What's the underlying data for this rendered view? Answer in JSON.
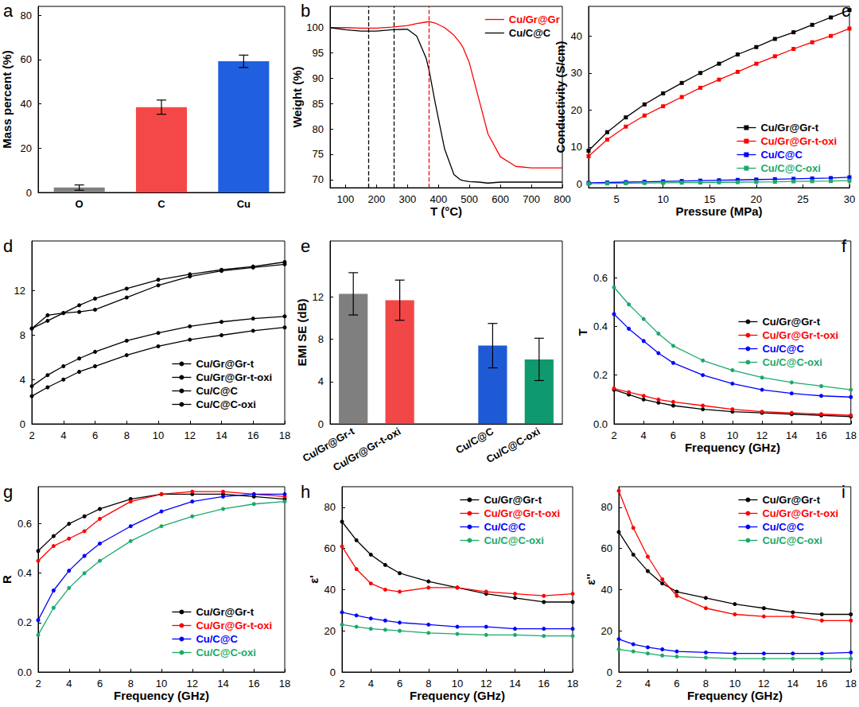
{
  "chart_data": [
    {
      "type": "bar",
      "title": "a",
      "ylabel": "Mass percent (%)",
      "categories": [
        "O",
        "C",
        "Cu"
      ],
      "values": [
        2.2,
        38.5,
        59.2
      ],
      "errors": [
        1.2,
        3.2,
        2.8
      ],
      "colors": [
        "#808080",
        "#f44848",
        "#1f5fe0"
      ],
      "ylim": [
        0,
        84
      ],
      "yticks": [
        0,
        20,
        40,
        60,
        80
      ],
      "grid": false
    },
    {
      "type": "line",
      "title": "b",
      "xlabel": "T (°C)",
      "ylabel": "Weight (%)",
      "x": [
        50,
        100,
        150,
        200,
        250,
        300,
        330,
        360,
        370,
        390,
        420,
        450,
        470,
        480,
        500,
        530,
        560,
        600,
        650,
        700,
        750,
        800
      ],
      "series": [
        {
          "name": "Cu/Gr@Gr",
          "color": "#ff0000",
          "values": [
            100,
            100,
            99.9,
            99.9,
            100.1,
            100.4,
            100.8,
            101.1,
            101.2,
            100.9,
            100,
            98.5,
            97,
            96,
            93,
            86,
            79,
            74.5,
            72.6,
            72.3,
            72.3,
            72.3
          ]
        },
        {
          "name": "Cu/C@C",
          "color": "#000000",
          "values": [
            100,
            99.6,
            99.3,
            99.3,
            99.6,
            99.7,
            98.3,
            94,
            91.5,
            85,
            76,
            71,
            70,
            69.8,
            69.6,
            69.5,
            69.3,
            69.5,
            69.5,
            69.5,
            69.5,
            69.5
          ]
        }
      ],
      "vlines": [
        {
          "x": 175,
          "color": "#000000"
        },
        {
          "x": 255,
          "color": "#000000"
        },
        {
          "x": 370,
          "color": "#ff0000"
        }
      ],
      "xlim": [
        50,
        800
      ],
      "xticks": [
        100,
        200,
        300,
        400,
        500,
        600,
        700,
        800
      ],
      "ylim": [
        68.4,
        104.2
      ],
      "yticks": [
        70,
        75,
        80,
        85,
        90,
        95,
        100
      ],
      "legend": "upper right",
      "grid": false
    },
    {
      "type": "line",
      "title": "c",
      "xlabel": "Pressure (MPa)",
      "ylabel": "Conductivity (S/cm)",
      "x": [
        2,
        4,
        6,
        8,
        10,
        12,
        14,
        16,
        18,
        20,
        22,
        24,
        26,
        28,
        30
      ],
      "series": [
        {
          "name": "Cu/Gr@Gr-t",
          "color": "#000000",
          "values": [
            9,
            14,
            18,
            21.5,
            24.5,
            27.3,
            30,
            32.5,
            35,
            37,
            39.2,
            41,
            43,
            45,
            47
          ]
        },
        {
          "name": "Cu/Gr@Gr-t-oxi",
          "color": "#ff0000",
          "values": [
            7.5,
            12,
            15.5,
            18.5,
            21,
            23.5,
            26,
            28.2,
            30.3,
            32.5,
            34.5,
            36.5,
            38.3,
            40,
            42
          ]
        },
        {
          "name": "Cu/C@C",
          "color": "#0000ff",
          "values": [
            0.3,
            0.4,
            0.5,
            0.6,
            0.7,
            0.8,
            0.9,
            1.0,
            1.1,
            1.2,
            1.3,
            1.4,
            1.5,
            1.6,
            1.8
          ]
        },
        {
          "name": "Cu/C@C-oxi",
          "color": "#1aaa6a",
          "values": [
            0.1,
            0.15,
            0.2,
            0.25,
            0.3,
            0.35,
            0.4,
            0.45,
            0.5,
            0.55,
            0.6,
            0.7,
            0.75,
            0.8,
            0.9
          ]
        }
      ],
      "marker": "square",
      "xlim": [
        2,
        30
      ],
      "xticks": [
        5,
        10,
        15,
        20,
        25,
        30
      ],
      "ylim": [
        -1,
        48
      ],
      "yticks": [
        0,
        10,
        20,
        30,
        40
      ],
      "legend": "lower right",
      "grid": false
    },
    {
      "type": "line",
      "title": "d",
      "x": [
        2,
        3,
        4,
        5,
        6,
        8,
        10,
        12,
        14,
        16,
        18
      ],
      "series": [
        {
          "name": "Cu/Gr@Gr-t",
          "color": "#000000",
          "values": [
            8.6,
            9.3,
            10.0,
            10.7,
            11.3,
            12.2,
            13.0,
            13.5,
            13.9,
            14.2,
            14.6
          ]
        },
        {
          "name": "Cu/Gr@Gr-t-oxi",
          "color": "#000000",
          "values": [
            8.6,
            9.8,
            10.0,
            10.1,
            10.3,
            11.4,
            12.5,
            13.3,
            13.8,
            14.1,
            14.4
          ]
        },
        {
          "name": "Cu/C@C",
          "color": "#000000",
          "values": [
            3.4,
            4.4,
            5.2,
            5.9,
            6.5,
            7.5,
            8.2,
            8.8,
            9.2,
            9.5,
            9.7
          ]
        },
        {
          "name": "Cu/C@C-oxi",
          "color": "#000000",
          "values": [
            2.5,
            3.3,
            4.0,
            4.7,
            5.2,
            6.2,
            7.0,
            7.6,
            8.0,
            8.4,
            8.7
          ]
        }
      ],
      "marker": "circle",
      "xlim": [
        2,
        18
      ],
      "xticks": [
        2,
        4,
        6,
        8,
        10,
        12,
        14,
        16,
        18
      ],
      "ylim": [
        0,
        16.5
      ],
      "yticks": [
        0,
        4,
        8,
        12
      ],
      "legend": "lower right",
      "grid": false
    },
    {
      "type": "bar",
      "title": "e",
      "ylabel": "EMI SE (dB)",
      "categories": [
        "Cu/Gr@Gr-t",
        "Cu/Gr@Gr-t-oxi",
        null,
        "Cu/C@C",
        "Cu/C@C-oxi"
      ],
      "values": [
        12.3,
        11.7,
        null,
        7.4,
        6.1
      ],
      "errors": [
        2.0,
        1.9,
        null,
        2.1,
        2.0
      ],
      "colors": [
        "#7f7f7f",
        "#f24747",
        null,
        "#1f5ad6",
        "#0e9a6e"
      ],
      "ylim": [
        0,
        17.3
      ],
      "yticks": [
        0,
        4,
        8,
        12
      ],
      "grid": false
    },
    {
      "type": "line",
      "title": "f",
      "xlabel": "Frequency (GHz)",
      "ylabel": "T",
      "x": [
        2,
        3,
        4,
        5,
        6,
        8,
        10,
        12,
        14,
        16,
        18
      ],
      "series": [
        {
          "name": "Cu/Gr@Gr-t",
          "color": "#000000",
          "values": [
            0.14,
            0.12,
            0.1,
            0.087,
            0.075,
            0.06,
            0.05,
            0.045,
            0.04,
            0.035,
            0.03
          ]
        },
        {
          "name": "Cu/Gr@Gr-t-oxi",
          "color": "#ff0000",
          "values": [
            0.145,
            0.13,
            0.115,
            0.1,
            0.09,
            0.075,
            0.06,
            0.05,
            0.045,
            0.04,
            0.035
          ]
        },
        {
          "name": "Cu/C@C",
          "color": "#0000ff",
          "values": [
            0.45,
            0.39,
            0.34,
            0.29,
            0.25,
            0.2,
            0.165,
            0.14,
            0.125,
            0.115,
            0.11
          ]
        },
        {
          "name": "Cu/C@C-oxi",
          "color": "#1aaa6a",
          "values": [
            0.56,
            0.49,
            0.43,
            0.37,
            0.32,
            0.26,
            0.22,
            0.19,
            0.17,
            0.155,
            0.14
          ]
        }
      ],
      "marker": "circle",
      "xlim": [
        2,
        18
      ],
      "xticks": [
        2,
        4,
        6,
        8,
        10,
        12,
        14,
        16,
        18
      ],
      "ylim": [
        0,
        0.75
      ],
      "yticks": [
        {
          "value": 0,
          "label": "0.0"
        },
        0.2,
        0.4,
        0.6
      ],
      "legend": "center right",
      "grid": false
    },
    {
      "type": "line",
      "title": "g",
      "xlabel": "Frequency (GHz)",
      "ylabel": "R",
      "x": [
        2,
        3,
        4,
        5,
        6,
        8,
        10,
        12,
        14,
        16,
        18
      ],
      "series": [
        {
          "name": "Cu/Gr@Gr-t",
          "color": "#000000",
          "values": [
            0.49,
            0.55,
            0.6,
            0.63,
            0.66,
            0.7,
            0.72,
            0.72,
            0.72,
            0.71,
            0.7
          ]
        },
        {
          "name": "Cu/Gr@Gr-t-oxi",
          "color": "#ff0000",
          "values": [
            0.45,
            0.51,
            0.54,
            0.57,
            0.62,
            0.69,
            0.72,
            0.73,
            0.73,
            0.72,
            0.71
          ]
        },
        {
          "name": "Cu/C@C",
          "color": "#0000ff",
          "values": [
            0.21,
            0.33,
            0.41,
            0.47,
            0.52,
            0.59,
            0.65,
            0.69,
            0.71,
            0.72,
            0.72
          ]
        },
        {
          "name": "Cu/C@C-oxi",
          "color": "#1aaa6a",
          "values": [
            0.15,
            0.26,
            0.34,
            0.4,
            0.45,
            0.53,
            0.59,
            0.63,
            0.66,
            0.68,
            0.69
          ]
        }
      ],
      "marker": "circle",
      "xlim": [
        2,
        18
      ],
      "xticks": [
        2,
        4,
        6,
        8,
        10,
        12,
        14,
        16,
        18
      ],
      "ylim": [
        0,
        0.75
      ],
      "yticks": [
        {
          "value": 0,
          "label": "0.0"
        },
        0.2,
        0.4,
        0.6
      ],
      "legend": "lower right",
      "grid": false
    },
    {
      "type": "line",
      "title": "h",
      "xlabel": "Frequency (GHz)",
      "ylabel": "ε'",
      "x": [
        2,
        3,
        4,
        5,
        6,
        8,
        10,
        12,
        14,
        16,
        18
      ],
      "series": [
        {
          "name": "Cu/Gr@Gr-t",
          "color": "#000000",
          "values": [
            73,
            64,
            57,
            52,
            48,
            44,
            41,
            38,
            36,
            34,
            34
          ]
        },
        {
          "name": "Cu/Gr@Gr-t-oxi",
          "color": "#ff0000",
          "values": [
            61,
            50,
            43,
            40,
            39,
            41,
            41,
            39,
            38,
            37,
            38
          ]
        },
        {
          "name": "Cu/C@C",
          "color": "#0000ff",
          "values": [
            29,
            27.5,
            26,
            25,
            24,
            23,
            22,
            22,
            21,
            21,
            21
          ]
        },
        {
          "name": "Cu/C@C-oxi",
          "color": "#1aaa6a",
          "values": [
            23,
            22,
            21,
            20.5,
            20,
            19,
            18.5,
            18,
            18,
            17.5,
            17.5
          ]
        }
      ],
      "marker": "circle",
      "xlim": [
        2,
        18
      ],
      "xticks": [
        2,
        4,
        6,
        8,
        10,
        12,
        14,
        16,
        18
      ],
      "ylim": [
        0,
        90
      ],
      "yticks": [
        0,
        20,
        40,
        60,
        80
      ],
      "legend": "upper right",
      "grid": false
    },
    {
      "type": "line",
      "title": "i",
      "xlabel": "Frequency (GHz)",
      "ylabel": "ε''",
      "x": [
        2,
        3,
        4,
        5,
        6,
        8,
        10,
        12,
        14,
        16,
        18
      ],
      "series": [
        {
          "name": "Cu/Gr@Gr-t",
          "color": "#000000",
          "values": [
            68,
            57,
            49,
            43,
            39,
            36,
            33,
            31,
            29,
            28,
            28
          ]
        },
        {
          "name": "Cu/Gr@Gr-t-oxi",
          "color": "#ff0000",
          "values": [
            88,
            70,
            56,
            45,
            37,
            31,
            28,
            27,
            27,
            25,
            25
          ]
        },
        {
          "name": "Cu/C@C",
          "color": "#0000ff",
          "values": [
            16,
            13.5,
            12,
            11,
            10,
            9.5,
            9,
            9,
            9,
            9,
            9.5
          ]
        },
        {
          "name": "Cu/C@C-oxi",
          "color": "#1aaa6a",
          "values": [
            11,
            10,
            9,
            8,
            7.5,
            7,
            6.5,
            6.5,
            6.5,
            6.5,
            6.5
          ]
        }
      ],
      "marker": "circle",
      "xlim": [
        2,
        18
      ],
      "xticks": [
        2,
        4,
        6,
        8,
        10,
        12,
        14,
        16,
        18
      ],
      "ylim": [
        0,
        90
      ],
      "yticks": [
        0,
        20,
        40,
        60,
        80
      ],
      "legend": "upper right",
      "grid": false
    }
  ]
}
